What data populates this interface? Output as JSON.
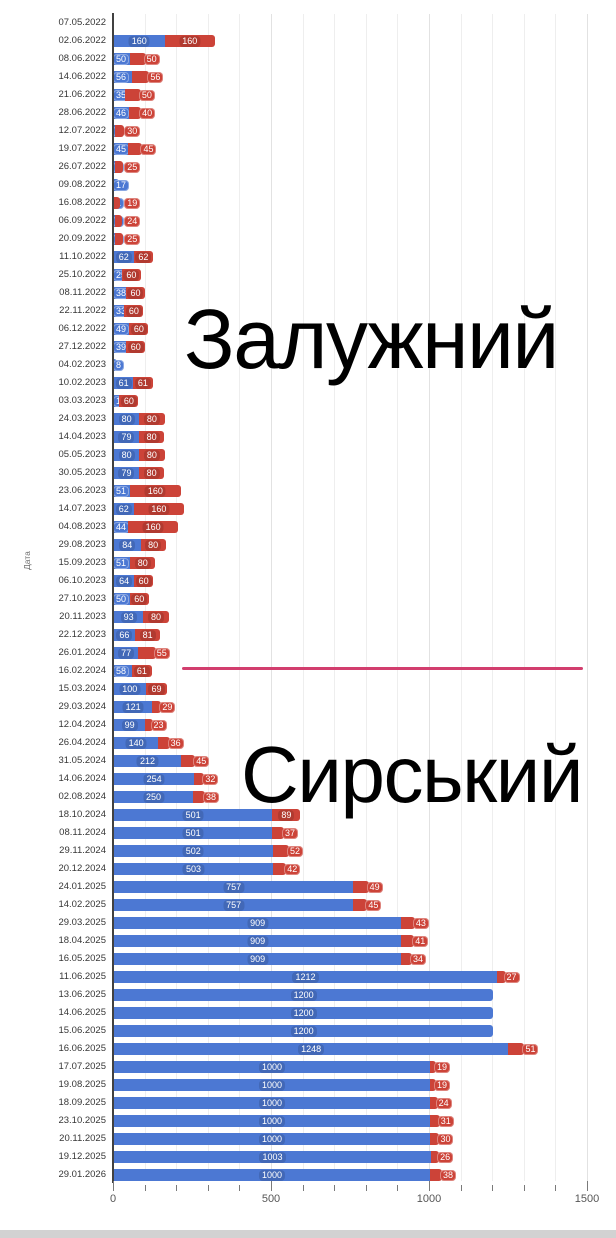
{
  "chart_data": {
    "type": "bar",
    "orientation": "horizontal",
    "stacked": true,
    "title": "",
    "xlabel": "",
    "ylabel": "Дата",
    "xlim": [
      0,
      1500
    ],
    "x_major_ticks": [
      "0",
      "500",
      "1000",
      "1500"
    ],
    "x_minor_tick_step": 100,
    "grid": true,
    "legend": "none",
    "categories": [
      "07.05.2022",
      "02.06.2022",
      "08.06.2022",
      "14.06.2022",
      "21.06.2022",
      "28.06.2022",
      "12.07.2022",
      "19.07.2022",
      "26.07.2022",
      "09.08.2022",
      "16.08.2022",
      "06.09.2022",
      "20.09.2022",
      "11.10.2022",
      "25.10.2022",
      "08.11.2022",
      "22.11.2022",
      "06.12.2022",
      "27.12.2022",
      "04.02.2023",
      "10.02.2023",
      "03.03.2023",
      "24.03.2023",
      "14.04.2023",
      "05.05.2023",
      "30.05.2023",
      "23.06.2023",
      "14.07.2023",
      "04.08.2023",
      "29.08.2023",
      "15.09.2023",
      "06.10.2023",
      "27.10.2023",
      "20.11.2023",
      "22.12.2023",
      "26.01.2024",
      "16.02.2024",
      "15.03.2024",
      "29.03.2024",
      "12.04.2024",
      "26.04.2024",
      "31.05.2024",
      "14.06.2024",
      "02.08.2024",
      "18.10.2024",
      "08.11.2024",
      "29.11.2024",
      "20.12.2024",
      "24.01.2025",
      "14.02.2025",
      "29.03.2025",
      "18.04.2025",
      "16.05.2025",
      "11.06.2025",
      "13.06.2025",
      "14.06.2025",
      "15.06.2025",
      "16.06.2025",
      "17.07.2025",
      "19.08.2025",
      "18.09.2025",
      "23.10.2025",
      "20.11.2025",
      "19.12.2025",
      "29.01.2026"
    ],
    "series": [
      {
        "name": "blue-segment",
        "color": "#4c78d3",
        "values": [
          0,
          160,
          50,
          56,
          35,
          46,
          3,
          45,
          2,
          17,
          1,
          2,
          2,
          62,
          25,
          38,
          33,
          49,
          39,
          8,
          61,
          17,
          80,
          79,
          80,
          79,
          51,
          62,
          44,
          84,
          51,
          64,
          50,
          93,
          66,
          77,
          58,
          100,
          121,
          99,
          140,
          212,
          254,
          250,
          501,
          501,
          502,
          503,
          757,
          757,
          909,
          909,
          909,
          1212,
          1200,
          1200,
          1200,
          1248,
          1000,
          1000,
          1000,
          1000,
          1000,
          1003,
          1000
        ]
      },
      {
        "name": "red-segment",
        "color": "#cc4338",
        "values": [
          0,
          160,
          50,
          56,
          50,
          40,
          30,
          45,
          25,
          0,
          19,
          24,
          25,
          62,
          60,
          60,
          60,
          60,
          60,
          0,
          61,
          60,
          80,
          80,
          80,
          80,
          160,
          160,
          160,
          80,
          80,
          60,
          60,
          80,
          81,
          55,
          61,
          69,
          29,
          23,
          36,
          45,
          32,
          38,
          89,
          37,
          52,
          42,
          49,
          45,
          43,
          41,
          34,
          27,
          0,
          0,
          0,
          51,
          19,
          19,
          24,
          31,
          30,
          26,
          38
        ]
      }
    ],
    "annotations": {
      "zaluzhnyi": {
        "text": "Залужний"
      },
      "syrskyi": {
        "text": "Сирський"
      }
    },
    "divider_line": {
      "color": "#d23e6e",
      "at_category": "16.02.2024"
    }
  }
}
